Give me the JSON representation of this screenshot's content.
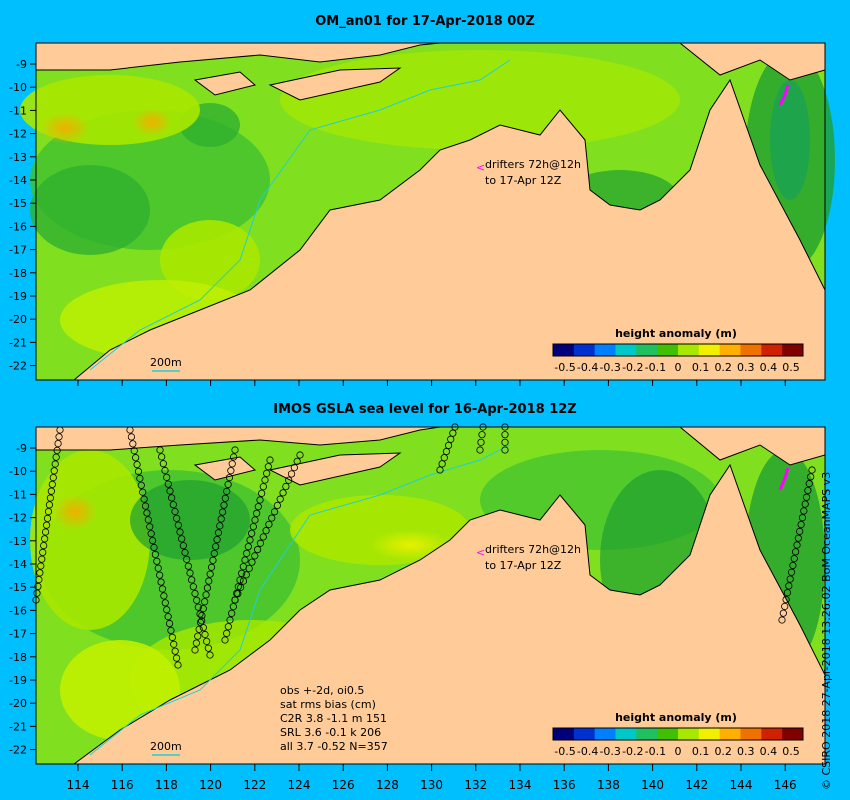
{
  "panel_top": {
    "title": "OM_an01 for 17-Apr-2018 00Z",
    "drifter_text_1": "drifters 72h@12h",
    "drifter_text_2": "to 17-Apr 12Z",
    "depth_label": "200m"
  },
  "panel_bottom": {
    "title": "IMOS GSLA sea level  for 16-Apr-2018 12Z",
    "drifter_text_1": "drifters 72h@12h",
    "drifter_text_2": "to 17-Apr 12Z",
    "depth_label": "200m",
    "stats": [
      "obs +-2d, oi0.5",
      "sat rms bias (cm)",
      "C2R   3.8 -1.1 m 151",
      "SRL    3.6 -0.1 k 206",
      "all    3.7 -0.52 N=357"
    ]
  },
  "colorbar": {
    "title": "height anomaly (m)",
    "ticks": [
      "-0.5",
      "-0.4",
      "-0.3",
      "-0.2",
      "-0.1",
      "0",
      "0.1",
      "0.2",
      "0.3",
      "0.4",
      "0.5"
    ],
    "colors": [
      "#00007a",
      "#0030d0",
      "#0080ff",
      "#00c8c8",
      "#20c060",
      "#40c000",
      "#a8e800",
      "#f0f000",
      "#ffb000",
      "#f07000",
      "#d02000",
      "#800000"
    ]
  },
  "axes": {
    "lat_ticks": [
      "-9",
      "-10",
      "-11",
      "-12",
      "-13",
      "-14",
      "-15",
      "-16",
      "-17",
      "-18",
      "-19",
      "-20",
      "-21",
      "-22"
    ],
    "lon_ticks": [
      "114",
      "116",
      "118",
      "120",
      "122",
      "124",
      "126",
      "128",
      "130",
      "132",
      "134",
      "136",
      "138",
      "140",
      "142",
      "144",
      "146"
    ]
  },
  "credit": "© CSIRO 2018  27-Apr-2018 13:26:02 BoM OceanMAPS v3",
  "colors": {
    "background": "#00bfff",
    "land": "#ffcc99",
    "ocean_base": "#80e020",
    "coast_shelf": "#a0a0a0"
  }
}
